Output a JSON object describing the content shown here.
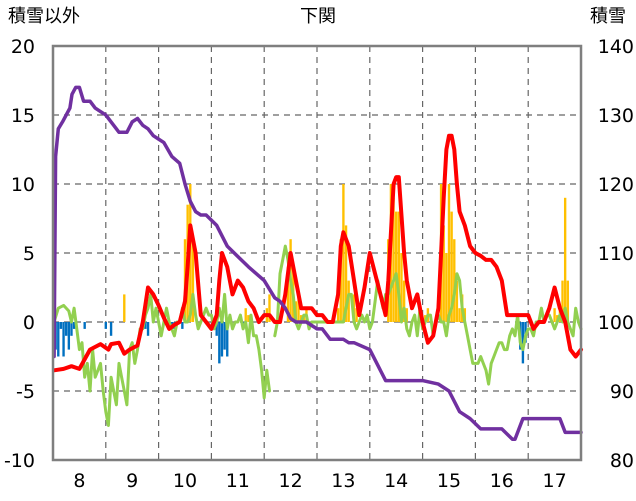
{
  "chart_data": {
    "type": "line",
    "title": "下関",
    "ylabel_left": "積雪以外",
    "ylabel_right": "積雪",
    "y_left_ticks": [
      "20",
      "15",
      "10",
      "5",
      "0",
      "-5",
      "-10"
    ],
    "y_right_ticks": [
      "140",
      "130",
      "120",
      "110",
      "100",
      "90",
      "80"
    ],
    "x_ticks": [
      "8",
      "9",
      "10",
      "11",
      "12",
      "13",
      "14",
      "15",
      "16",
      "17"
    ],
    "x_range": [
      7.5,
      17.5
    ],
    "ylim_left": [
      -10,
      20
    ],
    "ylim_right": [
      80,
      140
    ],
    "grid": "dashed",
    "colors": {
      "temperature": "#ff0000",
      "snow_depth": "#7030a0",
      "wind_index": "#92d050",
      "precip_pos": "#ffc000",
      "precip_neg": "#0070c0",
      "frame": "#7f7f7f",
      "grid": "#666666"
    },
    "series": [
      {
        "key": "snow_depth",
        "axis": "right",
        "x": [
          7.52,
          7.55,
          7.6,
          7.68,
          7.75,
          7.82,
          7.86,
          7.93,
          8.0,
          8.08,
          8.2,
          8.3,
          8.4,
          8.5,
          8.6,
          8.75,
          8.9,
          9.0,
          9.1,
          9.2,
          9.3,
          9.4,
          9.5,
          9.6,
          9.75,
          9.9,
          10.0,
          10.1,
          10.2,
          10.3,
          10.4,
          10.6,
          10.8,
          11.0,
          11.2,
          11.5,
          11.7,
          11.8,
          11.9,
          12.0,
          12.1,
          12.3,
          12.5,
          12.6,
          12.75,
          13.0,
          13.1,
          13.2,
          13.5,
          13.8,
          14.0,
          14.1,
          14.5,
          14.8,
          15.0,
          15.2,
          15.4,
          15.6,
          15.8,
          16.0,
          16.2,
          16.25,
          16.4,
          16.6,
          16.8,
          17.0,
          17.1,
          17.2,
          17.3,
          17.5
        ],
        "y": [
          95,
          124,
          128,
          129,
          130,
          131,
          133,
          134,
          134,
          132,
          132,
          131,
          130.5,
          130,
          129,
          127.5,
          127.5,
          129,
          129.5,
          128.5,
          128,
          127,
          126.5,
          126,
          124,
          123,
          120,
          117.5,
          116,
          115.5,
          115.5,
          114,
          111,
          109.5,
          108,
          106,
          103.5,
          103,
          102,
          100.5,
          100,
          100,
          99,
          99,
          97.5,
          97.5,
          97,
          97,
          96,
          91.5,
          91.5,
          91.5,
          91.5,
          91,
          90,
          87,
          86,
          84.5,
          84.5,
          84.5,
          83,
          83,
          86,
          86,
          86,
          86,
          86,
          84,
          84,
          84
        ]
      },
      {
        "key": "temperature",
        "axis": "left",
        "x": [
          7.52,
          7.7,
          7.85,
          8.0,
          8.2,
          8.4,
          8.55,
          8.6,
          8.75,
          8.85,
          8.95,
          9.1,
          9.2,
          9.3,
          9.4,
          9.5,
          9.6,
          9.7,
          9.8,
          9.9,
          10.0,
          10.05,
          10.1,
          10.2,
          10.3,
          10.4,
          10.5,
          10.6,
          10.65,
          10.7,
          10.8,
          10.9,
          11.0,
          11.1,
          11.2,
          11.3,
          11.4,
          11.5,
          11.6,
          11.7,
          11.8,
          11.9,
          12.0,
          12.1,
          12.2,
          12.3,
          12.4,
          12.5,
          12.6,
          12.7,
          12.8,
          12.9,
          12.95,
          13.0,
          13.1,
          13.2,
          13.3,
          13.4,
          13.5,
          13.6,
          13.7,
          13.8,
          13.85,
          13.95,
          14.0,
          14.05,
          14.15,
          14.2,
          14.3,
          14.4,
          14.5,
          14.6,
          14.7,
          14.8,
          14.85,
          14.9,
          14.95,
          15.0,
          15.05,
          15.1,
          15.15,
          15.2,
          15.3,
          15.4,
          15.5,
          15.6,
          15.7,
          15.8,
          15.9,
          16.0,
          16.1,
          16.2,
          16.3,
          16.4,
          16.5,
          16.6,
          16.7,
          16.8,
          16.9,
          17.0,
          17.1,
          17.2,
          17.3,
          17.4,
          17.5
        ],
        "y": [
          -3.5,
          -3.4,
          -3.2,
          -3.4,
          -2,
          -1.6,
          -2,
          -1.6,
          -1.5,
          -2.3,
          -2,
          -1.7,
          0,
          2.5,
          2,
          1.2,
          0.3,
          -0.5,
          -0.2,
          0,
          1.5,
          4,
          7,
          5,
          0.5,
          0,
          -0.5,
          0.5,
          3,
          5,
          4,
          2,
          3,
          2.5,
          1.5,
          1,
          0,
          0.5,
          0.5,
          0,
          0,
          2,
          5,
          3,
          1,
          1,
          1,
          0.5,
          0.5,
          0,
          0,
          2,
          5.5,
          6.5,
          5.5,
          3,
          0.5,
          2.5,
          5,
          3.5,
          2,
          0.5,
          3,
          10,
          10.5,
          10.5,
          5,
          3,
          1,
          2,
          0,
          -1.5,
          -1,
          1,
          5,
          9,
          12.5,
          13.5,
          13.5,
          12.5,
          10,
          8,
          7,
          5.5,
          5,
          4.8,
          4.5,
          4.5,
          4,
          3,
          0.5,
          0.5,
          0.5,
          0.5,
          0.5,
          -0.5,
          0,
          0,
          1,
          2.5,
          1,
          0,
          -2,
          -2.5,
          -2
        ]
      },
      {
        "key": "wind_index",
        "axis": "left",
        "x": [
          7.52,
          7.6,
          7.7,
          7.8,
          7.85,
          7.9,
          7.95,
          8.0,
          8.05,
          8.1,
          8.15,
          8.2,
          8.25,
          8.3,
          8.35,
          8.4,
          8.45,
          8.5,
          8.55,
          8.6,
          8.65,
          8.7,
          8.75,
          8.8,
          8.85,
          8.9,
          8.95,
          9.0,
          9.05,
          9.1,
          9.15,
          9.2,
          9.25,
          9.3,
          9.35,
          9.4,
          9.45,
          9.5,
          9.55,
          9.6,
          9.65,
          9.7,
          9.75,
          9.8,
          9.85,
          9.9,
          9.95,
          10.0,
          10.05,
          10.1,
          10.15,
          10.2,
          10.25,
          10.3,
          10.35,
          10.4,
          10.45,
          10.5,
          10.55,
          10.6,
          10.65,
          10.7,
          10.75,
          10.8,
          10.85,
          10.9,
          10.95,
          11.0,
          11.05,
          11.1,
          11.15,
          11.2,
          11.25,
          11.3,
          11.35,
          11.4,
          11.45,
          11.5,
          11.55,
          11.6
        ],
        "y": [
          0,
          1,
          1.2,
          0.8,
          0,
          1,
          -0.5,
          -2,
          -1.5,
          -4,
          -3,
          -5,
          -2,
          -4,
          -3.5,
          -3,
          -5,
          -6.5,
          -7.5,
          -4,
          -5,
          -6,
          -3,
          -4,
          -5,
          -6,
          -2,
          -1.5,
          -3,
          -2,
          -0.5,
          -0.5,
          0.5,
          1,
          2,
          0,
          1,
          0,
          -1,
          0,
          1,
          0,
          -0.5,
          -1,
          0,
          0,
          1,
          0,
          0,
          0.5,
          2,
          0.5,
          -0.5,
          0,
          0.5,
          1,
          0.5,
          0.5,
          -0.5,
          0,
          1,
          0,
          2,
          -0.5,
          0.5,
          -0.5,
          0,
          0,
          0.5,
          -0.5,
          0,
          -1.5,
          0.5,
          -1,
          -1,
          -2,
          -3.5,
          -5.5,
          -3.5,
          -5
        ]
      },
      {
        "key": "wind_index_2",
        "axis": "left",
        "x": [
          11.7,
          11.75,
          11.8,
          11.85,
          11.9,
          11.95,
          12.0,
          12.05,
          12.1,
          12.15,
          12.2,
          12.25,
          12.3,
          12.35,
          12.4,
          12.45,
          12.5,
          12.55,
          12.6,
          12.65,
          12.7,
          12.75,
          12.8,
          12.85,
          12.9,
          12.95,
          13.0,
          13.05,
          13.1,
          13.15,
          13.2,
          13.25,
          13.3,
          13.35,
          13.4,
          13.45,
          13.5,
          13.55,
          13.6,
          13.65,
          13.7,
          13.75,
          13.8,
          13.85,
          13.9,
          13.95,
          14.0,
          14.05,
          14.1,
          14.15,
          14.2,
          14.25,
          14.3,
          14.35,
          14.4,
          14.45,
          14.5,
          14.55,
          14.6,
          14.65,
          14.7,
          14.75,
          14.8,
          14.85,
          14.9,
          14.95,
          15.0,
          15.05,
          15.1,
          15.15,
          15.2,
          15.25,
          15.3,
          15.35,
          15.4,
          15.45,
          15.5,
          15.55,
          15.6,
          15.65,
          15.7,
          15.75,
          15.8,
          15.85,
          15.9,
          15.95,
          16.0,
          16.05,
          16.1,
          16.15,
          16.2,
          16.25,
          16.3,
          16.35,
          16.4,
          16.45,
          16.5,
          16.55,
          16.6,
          16.65,
          16.7,
          16.75,
          16.8,
          16.85,
          16.9,
          16.95,
          17.0,
          17.05,
          17.1,
          17.15,
          17.2,
          17.25,
          17.3,
          17.35,
          17.4,
          17.45,
          17.5
        ],
        "y": [
          -1,
          0,
          3.5,
          4.5,
          5.5,
          4.5,
          3,
          2,
          0,
          -0.5,
          0,
          0.5,
          0.5,
          -0.5,
          0,
          0,
          0,
          0,
          0,
          0,
          0,
          0,
          0,
          0,
          0,
          0,
          0,
          1,
          2,
          2,
          0,
          -0.5,
          0,
          0.5,
          0,
          0.5,
          -0.5,
          0,
          1.5,
          3,
          2,
          1,
          2,
          2,
          2.5,
          3,
          3.5,
          2,
          0,
          1,
          -0.5,
          -1,
          0,
          0.5,
          -1,
          1,
          -0.5,
          0,
          0.5,
          0.5,
          -1,
          0,
          0.5,
          0,
          0,
          -1,
          0.5,
          1,
          2,
          3.5,
          3,
          1,
          0,
          -1,
          -2,
          -3,
          -3,
          -3,
          -2.5,
          -3,
          -3.5,
          -4.5,
          -3,
          -2.5,
          -2,
          -1.5,
          -1.5,
          -2,
          -2,
          -1,
          -0.5,
          -1,
          0.5,
          -1.5,
          -2,
          -1,
          -0.5,
          -0.5,
          -1,
          0,
          0,
          1,
          0,
          0.5,
          0.5,
          0,
          -0.5,
          0,
          0.5,
          0,
          1,
          0,
          -0.5,
          -1,
          1,
          0,
          -0.5
        ]
      }
    ],
    "bars": {
      "key": "precip",
      "axis": "left",
      "x": [
        7.55,
        7.6,
        7.65,
        7.7,
        7.75,
        7.8,
        7.85,
        7.9,
        8.1,
        8.5,
        8.6,
        8.85,
        9.2,
        9.25,
        9.3,
        9.75,
        9.8,
        9.95,
        10.0,
        10.05,
        10.1,
        10.15,
        10.6,
        10.65,
        10.7,
        10.75,
        10.8,
        11.1,
        11.15,
        11.2,
        11.55,
        11.6,
        11.95,
        12.0,
        12.05,
        12.1,
        12.15,
        12.2,
        12.25,
        12.3,
        12.9,
        12.95,
        13.0,
        13.05,
        13.1,
        13.2,
        13.25,
        13.5,
        13.85,
        13.9,
        13.95,
        14.0,
        14.05,
        14.1,
        14.15,
        14.2,
        14.55,
        14.6,
        14.85,
        14.9,
        14.95,
        15.0,
        15.05,
        15.1,
        15.15,
        15.2,
        15.25,
        15.3,
        16.3,
        16.35,
        16.4,
        16.45,
        17.0,
        17.05,
        17.1,
        17.15,
        17.2,
        17.25
      ],
      "y": [
        -2,
        -2.5,
        -0.5,
        -2.5,
        -1,
        -2,
        -1,
        -0.5,
        -0.5,
        -0.5,
        -1,
        2,
        -0.5,
        -0.5,
        -1,
        -0.5,
        -0.5,
        -0.5,
        6,
        8.5,
        10,
        6,
        -1,
        -3,
        -2.5,
        -2,
        -2.5,
        -0.5,
        1,
        0.5,
        1,
        2,
        4,
        6,
        4,
        1.5,
        2,
        0.5,
        0.5,
        1,
        1,
        6,
        10,
        7,
        3,
        2,
        1,
        -0.5,
        6,
        10,
        9,
        8,
        8,
        5,
        3,
        1,
        0.5,
        1,
        10,
        7,
        5,
        10,
        8,
        6,
        3,
        1,
        2,
        1,
        -0.5,
        -2,
        -3,
        -1.5,
        1,
        0.5,
        1,
        3,
        9,
        3
      ]
    }
  }
}
